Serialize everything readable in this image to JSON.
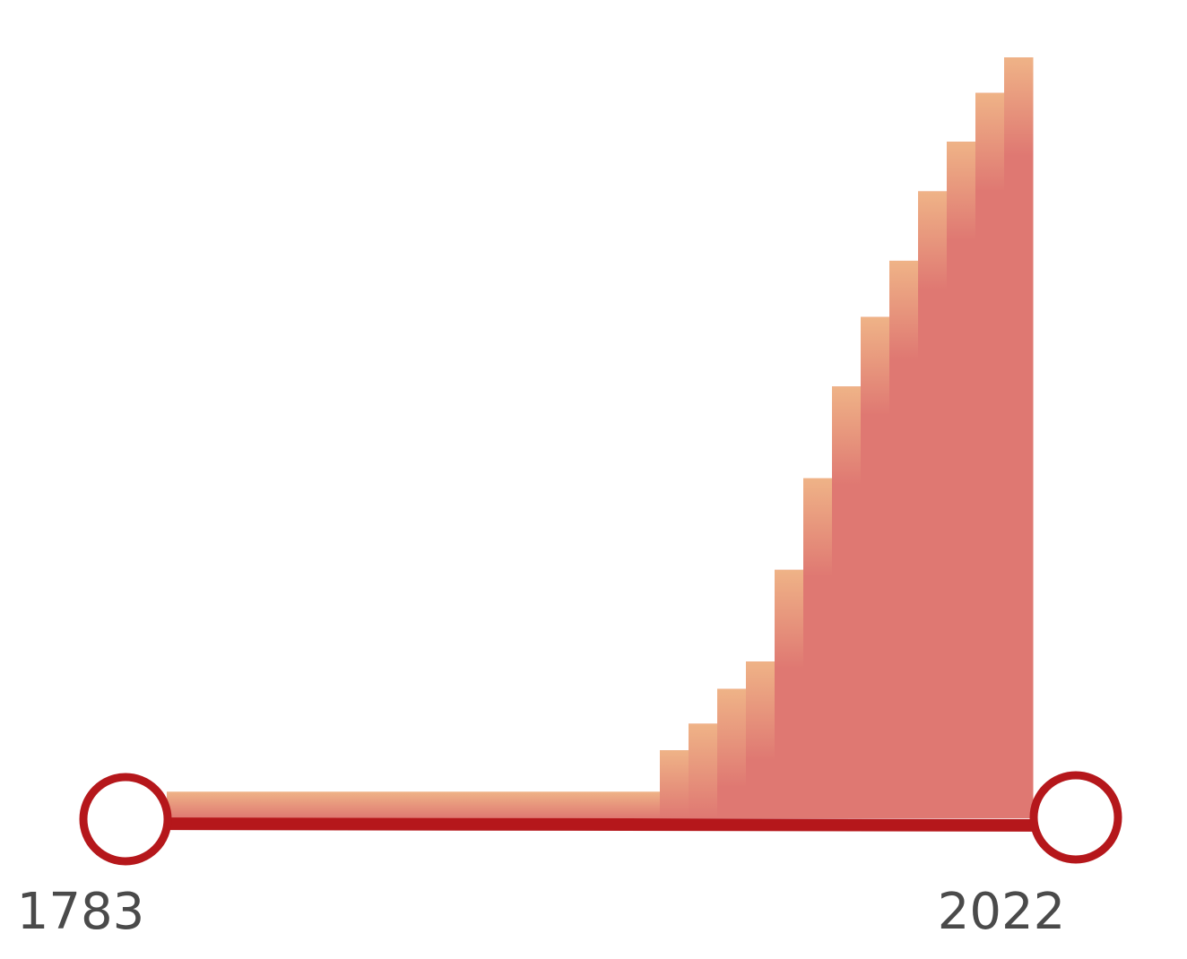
{
  "chart_data": {
    "type": "area",
    "x_start": 1783,
    "x_end": 2022,
    "x_tick_labels": [
      "1783",
      "2022"
    ],
    "title": "",
    "xlabel": "",
    "ylabel": "",
    "series": [
      {
        "values": [
          0.036,
          0.092,
          0.128,
          0.175,
          0.212,
          0.336,
          0.46,
          0.584,
          0.678,
          0.754,
          0.848,
          0.915,
          0.981,
          1.029
        ]
      }
    ],
    "grid": false,
    "legend": "none"
  },
  "colors": {
    "stroke": "#b5171b",
    "fill_top": "#efb387",
    "fill_bottom": "#df7872",
    "text": "#4a4a4a",
    "handle_fill": "#ffffff"
  },
  "icons": {
    "left_handle": "range-handle-circle",
    "right_handle": "range-handle-circle"
  }
}
